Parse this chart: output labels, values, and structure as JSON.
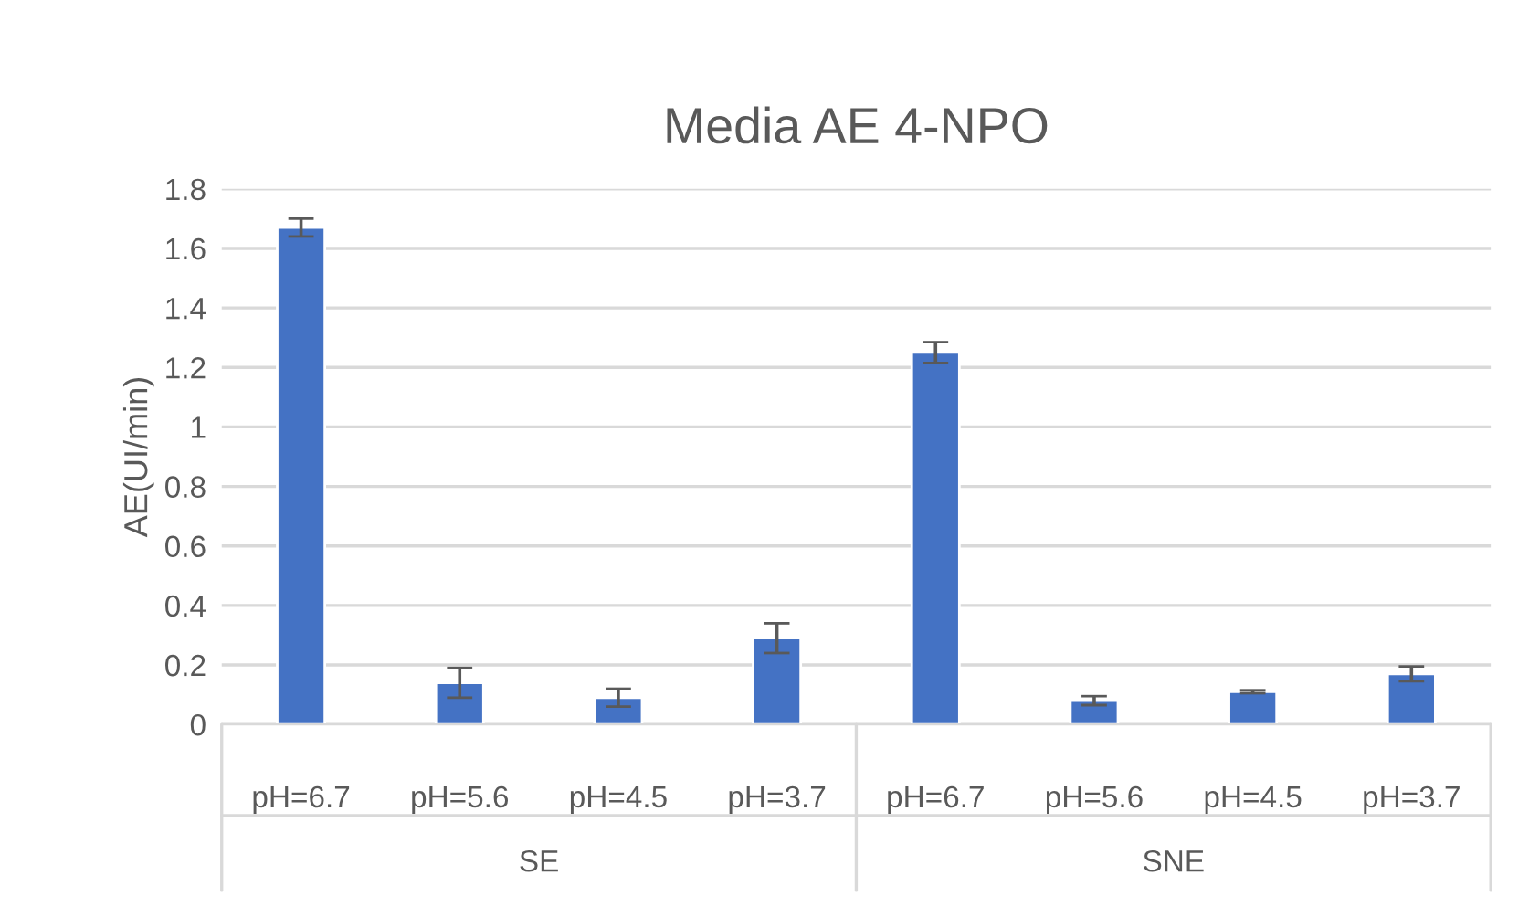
{
  "chart_data": {
    "type": "bar",
    "title": "Media AE 4-NPO",
    "ylabel": "AE(UI/min)",
    "categories": [
      "pH=6.7",
      "pH=5.6",
      "pH=4.5",
      "pH=3.7",
      "pH=6.7",
      "pH=5.6",
      "pH=4.5",
      "pH=3.7"
    ],
    "values": [
      1.67,
      0.14,
      0.09,
      0.29,
      1.25,
      0.08,
      0.11,
      0.17
    ],
    "errors": [
      0.03,
      0.05,
      0.03,
      0.05,
      0.035,
      0.015,
      0.005,
      0.025
    ],
    "color": "#4472c4",
    "ylim": [
      0,
      1.8
    ],
    "yticks": [
      0,
      0.2,
      0.4,
      0.6,
      0.8,
      1,
      1.2,
      1.4,
      1.6,
      1.8
    ],
    "grid": "y",
    "annotations": [
      "SE",
      "SNE"
    ]
  }
}
